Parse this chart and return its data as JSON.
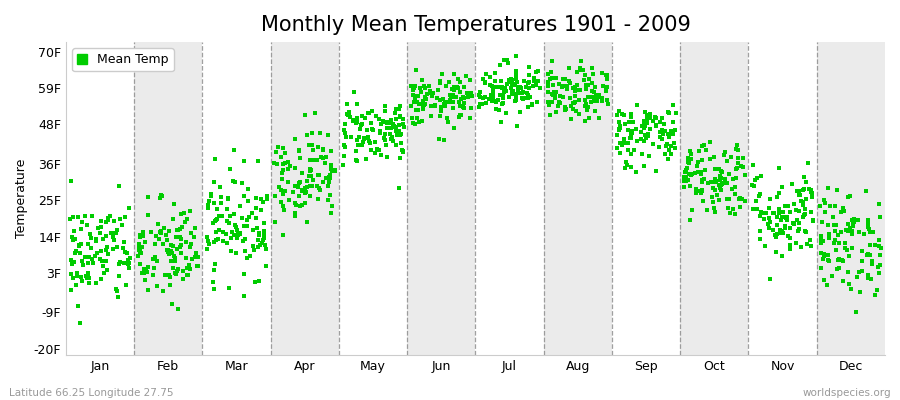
{
  "title": "Monthly Mean Temperatures 1901 - 2009",
  "ylabel": "Temperature",
  "bottom_left": "Latitude 66.25 Longitude 27.75",
  "bottom_right": "worldspecies.org",
  "legend_label": "Mean Temp",
  "dot_color": "#00CC00",
  "background_color": "#FFFFFF",
  "plot_bg_light": "#FFFFFF",
  "plot_bg_dark": "#EBEBEB",
  "vline_color": "#888888",
  "ytick_labels": [
    "-20F",
    "-9F",
    "3F",
    "14F",
    "25F",
    "36F",
    "48F",
    "59F",
    "70F"
  ],
  "ytick_values": [
    -20,
    -9,
    3,
    14,
    25,
    36,
    48,
    59,
    70
  ],
  "months": [
    "Jan",
    "Feb",
    "Mar",
    "Apr",
    "May",
    "Jun",
    "Jul",
    "Aug",
    "Sep",
    "Oct",
    "Nov",
    "Dec"
  ],
  "month_means_f": [
    9,
    9,
    18,
    33,
    46,
    55,
    59,
    57,
    45,
    32,
    21,
    12
  ],
  "month_stds_f": [
    8,
    8,
    8,
    7,
    5,
    4,
    4,
    4,
    5,
    6,
    7,
    8
  ],
  "n_years": 109,
  "seed": 42,
  "figsize": [
    9.0,
    4.0
  ],
  "dpi": 100,
  "title_fontsize": 15,
  "label_fontsize": 9,
  "tick_fontsize": 9,
  "legend_fontsize": 9,
  "dot_size": 10
}
